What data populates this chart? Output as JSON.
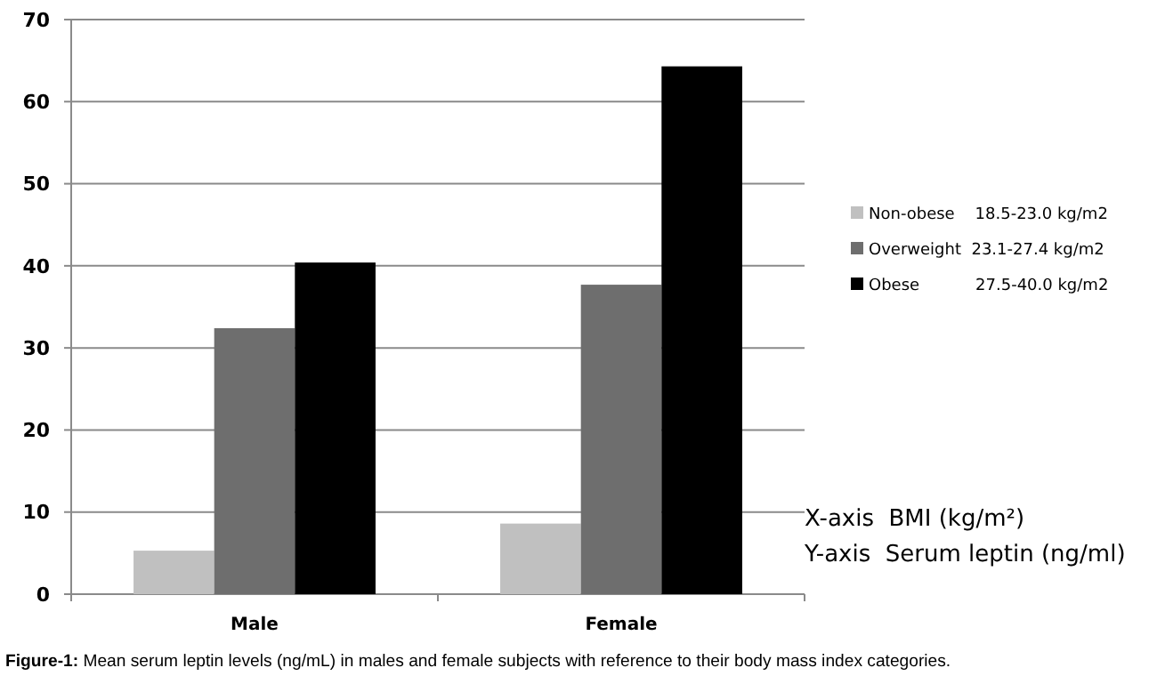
{
  "chart_data": {
    "type": "bar",
    "categories": [
      "Male",
      "Female"
    ],
    "series": [
      {
        "name": "Non-obese    18.5-23.0 kg/m2",
        "color": "#c0c0c0",
        "values": [
          5.3,
          8.6
        ]
      },
      {
        "name": "Overweight  23.1-27.4 kg/m2",
        "color": "#6e6e6e",
        "values": [
          32.4,
          37.7
        ]
      },
      {
        "name": "Obese           27.5-40.0 kg/m2",
        "color": "#000000",
        "values": [
          40.4,
          64.3
        ]
      }
    ],
    "ylim": [
      0,
      70
    ],
    "yticks": [
      0,
      10,
      20,
      30,
      40,
      50,
      60,
      70
    ],
    "grid": "y",
    "legend": "right",
    "annotations": [
      "X-axis  BMI (kg/m²)",
      "Y-axis  Serum leptin (ng/ml)",
      "Figure-1: Mean serum leptin levels (ng/mL) in males and female subjects with reference to their body mass index categories."
    ]
  }
}
